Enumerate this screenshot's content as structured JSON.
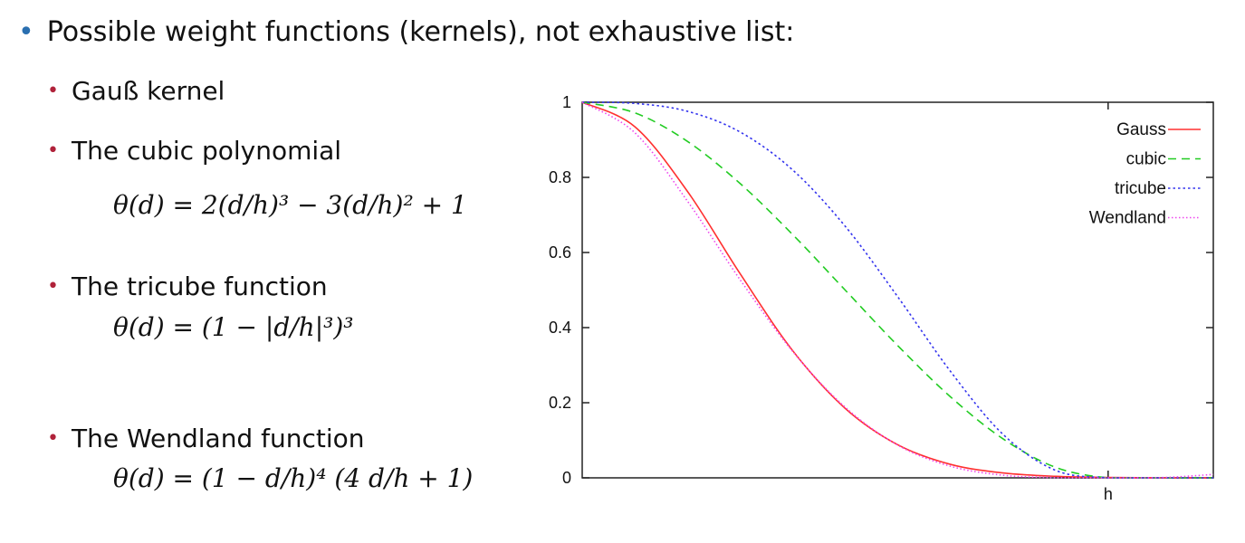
{
  "slide": {
    "heading": "Possible weight functions (kernels), not exhaustive list:",
    "items": [
      {
        "label": "Gauß kernel",
        "formula": ""
      },
      {
        "label": "The cubic polynomial",
        "formula": "θ(d) = 2(d/h)³ − 3(d/h)² + 1"
      },
      {
        "label": "The tricube function",
        "formula": "θ(d) = (1 − |d/h|³)³"
      },
      {
        "label": "The Wendland function",
        "formula": "θ(d) = (1 − d/h)⁴ (4 d/h + 1)"
      }
    ]
  },
  "chart_data": {
    "type": "line",
    "title": "",
    "xlabel": "",
    "ylabel": "",
    "x_unit": "h",
    "x": [
      0,
      0.1,
      0.2,
      0.3,
      0.4,
      0.5,
      0.6,
      0.7,
      0.8,
      0.9,
      1.0,
      1.1,
      1.2
    ],
    "xlim": [
      0,
      1.2
    ],
    "ylim": [
      0,
      1
    ],
    "x_ticks": [
      {
        "value": 1.0,
        "label": "h"
      }
    ],
    "y_ticks": [
      {
        "value": 0,
        "label": "0"
      },
      {
        "value": 0.2,
        "label": "0.2"
      },
      {
        "value": 0.4,
        "label": "0.4"
      },
      {
        "value": 0.6,
        "label": "0.6"
      },
      {
        "value": 0.8,
        "label": "0.8"
      },
      {
        "value": 1,
        "label": "1"
      }
    ],
    "grid": false,
    "legend_position": "top-right",
    "series": [
      {
        "name": "Gauss",
        "color": "#ff3030",
        "dash": "solid",
        "values": [
          1,
          0.935,
          0.763,
          0.544,
          0.339,
          0.185,
          0.088,
          0.036,
          0.013,
          0.004,
          0.001,
          0,
          0
        ]
      },
      {
        "name": "cubic",
        "color": "#22cc22",
        "dash": "dashed",
        "values": [
          1,
          0.972,
          0.896,
          0.784,
          0.648,
          0.5,
          0.352,
          0.216,
          0.104,
          0.028,
          0,
          0,
          0
        ]
      },
      {
        "name": "tricube",
        "color": "#3333ee",
        "dash": "dotted",
        "values": [
          1,
          0.997,
          0.976,
          0.921,
          0.82,
          0.67,
          0.482,
          0.284,
          0.116,
          0.02,
          0,
          0,
          0
        ]
      },
      {
        "name": "Wendland",
        "color": "#ee44ee",
        "dash": "fine-dotted",
        "values": [
          1,
          0.919,
          0.737,
          0.528,
          0.337,
          0.188,
          0.087,
          0.031,
          0.007,
          0.0005,
          0,
          0.0005,
          0.009
        ]
      }
    ]
  }
}
